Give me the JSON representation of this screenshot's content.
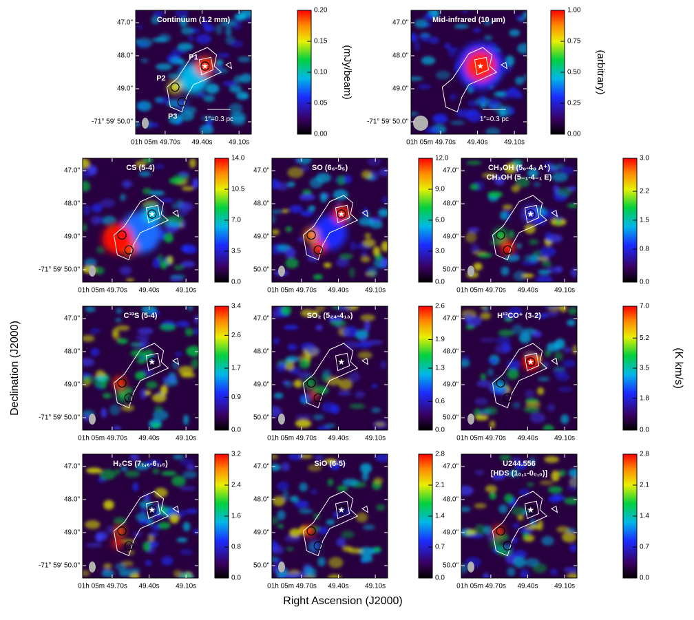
{
  "chart_data": [
    {
      "type": "map",
      "title": "Continuum (1.2 mm)",
      "colorbar_label": "(mJy/beam)",
      "clim": [
        0,
        0.2
      ],
      "cticks": [
        {
          "value": 0,
          "label": "0.00"
        },
        {
          "value": 0.05,
          "label": "0.05"
        },
        {
          "value": 0.1,
          "label": "0.10"
        },
        {
          "value": 0.15,
          "label": "0.15"
        },
        {
          "value": 0.2,
          "label": "0.20"
        }
      ],
      "annotations": [
        "P1",
        "P2",
        "P3"
      ],
      "scale_label": "1\"=0.3 pc",
      "xlim": [
        49.94,
        49.0
      ],
      "xticks": [
        {
          "value": 49.7,
          "label": "01h 05m 49.70s"
        },
        {
          "value": 49.4,
          "label": "49.40s"
        },
        {
          "value": 49.1,
          "label": "49.10s"
        }
      ],
      "ylim": [
        50.375,
        46.625
      ],
      "yticks": [
        {
          "value": 47,
          "label": "47.0\""
        },
        {
          "value": 48,
          "label": "48.0\""
        },
        {
          "value": 49,
          "label": "49.0\""
        },
        {
          "value": 50,
          "label": "-71° 59' 50.0\""
        }
      ]
    },
    {
      "type": "map",
      "title": "Mid-infrared (10 μm)",
      "colorbar_label": "(arbitrary)",
      "clim": [
        0,
        1
      ],
      "cticks": [
        {
          "value": 0,
          "label": "0.00"
        },
        {
          "value": 0.25,
          "label": "0.25"
        },
        {
          "value": 0.5,
          "label": "0.50"
        },
        {
          "value": 0.75,
          "label": "0.75"
        },
        {
          "value": 1,
          "label": "1.00"
        }
      ],
      "scale_label": "1\"=0.3 pc",
      "xlim": [
        49.94,
        49.0
      ],
      "xticks": [
        {
          "value": 49.7,
          "label": "01h 05m 49.70s"
        },
        {
          "value": 49.4,
          "label": "49.40s"
        },
        {
          "value": 49.1,
          "label": "49.10s"
        }
      ],
      "ylim": [
        50.375,
        46.625
      ],
      "yticks": [
        {
          "value": 47,
          "label": "47.0\""
        },
        {
          "value": 48,
          "label": "48.0\""
        },
        {
          "value": 49,
          "label": "49.0\""
        },
        {
          "value": 50,
          "label": "-71° 59' 50.0\""
        }
      ]
    },
    {
      "type": "map",
      "title": "CS (5-4)",
      "clim": [
        0,
        14
      ],
      "cticks": [
        {
          "value": 0,
          "label": "0.0"
        },
        {
          "value": 3.5,
          "label": "3.5"
        },
        {
          "value": 7,
          "label": "7.0"
        },
        {
          "value": 10.5,
          "label": "10.5"
        },
        {
          "value": 14,
          "label": "14.0"
        }
      ],
      "xlim": [
        49.94,
        49.0
      ],
      "xticks": [
        {
          "value": 49.7,
          "label": "01h 05m 49.70s"
        },
        {
          "value": 49.4,
          "label": "49.40s"
        },
        {
          "value": 49.1,
          "label": "49.10s"
        }
      ],
      "ylim": [
        50.375,
        46.625
      ],
      "yticks": [
        {
          "value": 47,
          "label": "47.0\""
        },
        {
          "value": 48,
          "label": "48.0\""
        },
        {
          "value": 49,
          "label": "49.0\""
        },
        {
          "value": 50,
          "label": "-71° 59' 50.0\""
        }
      ]
    },
    {
      "type": "map",
      "title": "SO (6₆-5₅)",
      "clim": [
        0,
        12
      ],
      "cticks": [
        {
          "value": 0,
          "label": "0.0"
        },
        {
          "value": 3,
          "label": "3.0"
        },
        {
          "value": 6,
          "label": "6.0"
        },
        {
          "value": 9,
          "label": "9.0"
        },
        {
          "value": 12,
          "label": "12.0"
        }
      ],
      "xlim": [
        49.94,
        49.0
      ],
      "xticks": [
        {
          "value": 49.7,
          "label": "01h 05m 49.70s"
        },
        {
          "value": 49.4,
          "label": "49.40s"
        },
        {
          "value": 49.1,
          "label": "49.10s"
        }
      ],
      "ylim": [
        50.375,
        46.625
      ],
      "yticks": [
        {
          "value": 47,
          "label": "47.0\""
        },
        {
          "value": 48,
          "label": "48.0\""
        },
        {
          "value": 49,
          "label": "49.0\""
        },
        {
          "value": 50,
          "label": "50.0\""
        }
      ]
    },
    {
      "type": "map",
      "title": "CH₃OH (5₀-4₀ A⁺)",
      "subtitle": "CH₃OH (5₋₁-4₋₁ E)",
      "clim": [
        0,
        3
      ],
      "cticks": [
        {
          "value": 0,
          "label": "0.0"
        },
        {
          "value": 0.8,
          "label": "0.8"
        },
        {
          "value": 1.5,
          "label": "1.5"
        },
        {
          "value": 2.2,
          "label": "2.2"
        },
        {
          "value": 3,
          "label": "3.0"
        }
      ],
      "xlim": [
        49.94,
        49.0
      ],
      "xticks": [
        {
          "value": 49.7,
          "label": "01h 05m 49.70s"
        },
        {
          "value": 49.4,
          "label": "49.40s"
        },
        {
          "value": 49.1,
          "label": "49.10s"
        }
      ],
      "ylim": [
        50.375,
        46.625
      ],
      "yticks": [
        {
          "value": 47,
          "label": "47.0\""
        },
        {
          "value": 48,
          "label": "48.0\""
        },
        {
          "value": 49,
          "label": "49.0\""
        },
        {
          "value": 50,
          "label": "50.0\""
        }
      ]
    },
    {
      "type": "map",
      "title": "C³³S (5-4)",
      "clim": [
        0,
        3.4
      ],
      "cticks": [
        {
          "value": 0,
          "label": "0.0"
        },
        {
          "value": 0.9,
          "label": "0.9"
        },
        {
          "value": 1.7,
          "label": "1.7"
        },
        {
          "value": 2.6,
          "label": "2.6"
        },
        {
          "value": 3.4,
          "label": "3.4"
        }
      ],
      "xlim": [
        49.94,
        49.0
      ],
      "xticks": [
        {
          "value": 49.7,
          "label": "01h 05m 49.70s"
        },
        {
          "value": 49.4,
          "label": "49.40s"
        },
        {
          "value": 49.1,
          "label": "49.10s"
        }
      ],
      "ylim": [
        50.375,
        46.625
      ],
      "yticks": [
        {
          "value": 47,
          "label": "47.0\""
        },
        {
          "value": 48,
          "label": "48.0\""
        },
        {
          "value": 49,
          "label": "49.0\""
        },
        {
          "value": 50,
          "label": "-71° 59' 50.0\""
        }
      ]
    },
    {
      "type": "map",
      "title": "SO₂ (5₂₄-4₁₃)",
      "clim": [
        0,
        2.6
      ],
      "cticks": [
        {
          "value": 0,
          "label": "0.0"
        },
        {
          "value": 0.6,
          "label": "0.6"
        },
        {
          "value": 1.3,
          "label": "1.3"
        },
        {
          "value": 1.9,
          "label": "1.9"
        },
        {
          "value": 2.6,
          "label": "2.6"
        }
      ],
      "xlim": [
        49.94,
        49.0
      ],
      "xticks": [
        {
          "value": 49.7,
          "label": "01h 05m 49.70s"
        },
        {
          "value": 49.4,
          "label": "49.40s"
        },
        {
          "value": 49.1,
          "label": "49.10s"
        }
      ],
      "ylim": [
        50.375,
        46.625
      ],
      "yticks": [
        {
          "value": 47,
          "label": "47.0\""
        },
        {
          "value": 48,
          "label": "48.0\""
        },
        {
          "value": 49,
          "label": "49.0\""
        },
        {
          "value": 50,
          "label": "50.0\""
        }
      ]
    },
    {
      "type": "map",
      "title": "H¹³CO⁺ (3-2)",
      "clim": [
        0,
        7
      ],
      "cticks": [
        {
          "value": 0,
          "label": "0.0"
        },
        {
          "value": 1.8,
          "label": "1.8"
        },
        {
          "value": 3.5,
          "label": "3.5"
        },
        {
          "value": 5.2,
          "label": "5.2"
        },
        {
          "value": 7,
          "label": "7.0"
        }
      ],
      "xlim": [
        49.94,
        49.0
      ],
      "xticks": [
        {
          "value": 49.7,
          "label": "01h 05m 49.70s"
        },
        {
          "value": 49.4,
          "label": "49.40s"
        },
        {
          "value": 49.1,
          "label": "49.10s"
        }
      ],
      "ylim": [
        50.375,
        46.625
      ],
      "yticks": [
        {
          "value": 47,
          "label": "47.0\""
        },
        {
          "value": 48,
          "label": "48.0\""
        },
        {
          "value": 49,
          "label": "49.0\""
        },
        {
          "value": 50,
          "label": "50.0\""
        }
      ]
    },
    {
      "type": "map",
      "title": "H₂CS (7₁,₆-6₁,₅)",
      "clim": [
        0,
        3.2
      ],
      "cticks": [
        {
          "value": 0,
          "label": "0.0"
        },
        {
          "value": 0.8,
          "label": "0.8"
        },
        {
          "value": 1.6,
          "label": "1.6"
        },
        {
          "value": 2.4,
          "label": "2.4"
        },
        {
          "value": 3.2,
          "label": "3.2"
        }
      ],
      "xlim": [
        49.94,
        49.0
      ],
      "xticks": [
        {
          "value": 49.7,
          "label": "01h 05m 49.70s"
        },
        {
          "value": 49.4,
          "label": "49.40s"
        },
        {
          "value": 49.1,
          "label": "49.10s"
        }
      ],
      "ylim": [
        50.375,
        46.625
      ],
      "yticks": [
        {
          "value": 47,
          "label": "47.0\""
        },
        {
          "value": 48,
          "label": "48.0\""
        },
        {
          "value": 49,
          "label": "49.0\""
        },
        {
          "value": 50,
          "label": "-71° 59' 50.0\""
        }
      ]
    },
    {
      "type": "map",
      "title": "SiO (6-5)",
      "clim": [
        0,
        2.8
      ],
      "cticks": [
        {
          "value": 0,
          "label": "0.0"
        },
        {
          "value": 0.7,
          "label": "0.7"
        },
        {
          "value": 1.4,
          "label": "1.4"
        },
        {
          "value": 2.1,
          "label": "2.1"
        },
        {
          "value": 2.8,
          "label": "2.8"
        }
      ],
      "xlim": [
        49.94,
        49.0
      ],
      "xticks": [
        {
          "value": 49.7,
          "label": "01h 05m 49.70s"
        },
        {
          "value": 49.4,
          "label": "49.40s"
        },
        {
          "value": 49.1,
          "label": "49.10s"
        }
      ],
      "ylim": [
        50.375,
        46.625
      ],
      "yticks": [
        {
          "value": 47,
          "label": "47.0\""
        },
        {
          "value": 48,
          "label": "48.0\""
        },
        {
          "value": 49,
          "label": "49.0\""
        },
        {
          "value": 50,
          "label": "50.0\""
        }
      ]
    },
    {
      "type": "map",
      "title": "U244.556",
      "subtitle": "[HDS (1₀,₁-0₀,₀)]",
      "clim": [
        0,
        2.8
      ],
      "cticks": [
        {
          "value": 0,
          "label": "0.0"
        },
        {
          "value": 0.7,
          "label": "0.7"
        },
        {
          "value": 1.4,
          "label": "1.4"
        },
        {
          "value": 2.1,
          "label": "2.1"
        },
        {
          "value": 2.8,
          "label": "2.8"
        }
      ],
      "xlim": [
        49.94,
        49.0
      ],
      "xticks": [
        {
          "value": 49.7,
          "label": "01h 05m 49.70s"
        },
        {
          "value": 49.4,
          "label": "49.40s"
        },
        {
          "value": 49.1,
          "label": "49.10s"
        }
      ],
      "ylim": [
        50.375,
        46.625
      ],
      "yticks": [
        {
          "value": 47,
          "label": "47.0\""
        },
        {
          "value": 48,
          "label": "48.0\""
        },
        {
          "value": 49,
          "label": "49.0\""
        },
        {
          "value": 50,
          "label": "50.0\""
        }
      ]
    }
  ],
  "x_axis_label": "Right Ascension (J2000)",
  "y_axis_label": "Declination (J2000)",
  "colorbar_label": "(K km/s)"
}
